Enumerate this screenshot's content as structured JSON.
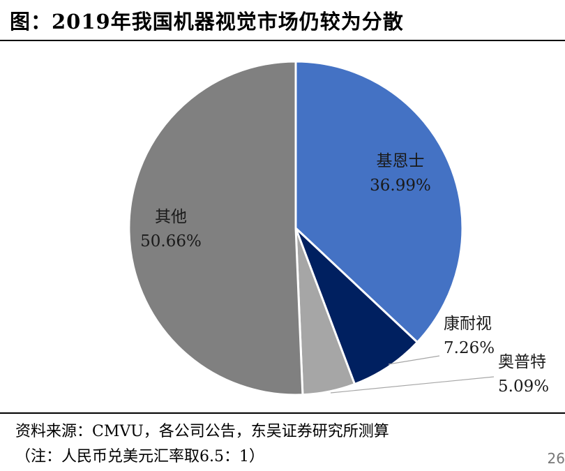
{
  "header": {
    "title": "图：2019年我国机器视觉市场仍较为分散"
  },
  "chart_data": {
    "type": "pie",
    "categories": [
      "基恩士",
      "康耐视",
      "奥普特",
      "其他"
    ],
    "values": [
      36.99,
      7.26,
      5.09,
      50.66
    ],
    "value_labels": [
      "36.99%",
      "7.26%",
      "5.09%",
      "50.66%"
    ],
    "colors": [
      "#4472C4",
      "#002060",
      "#A6A6A6",
      "#808080"
    ],
    "title": "",
    "legend": "none"
  },
  "footer": {
    "source": "资料来源：CMVU，各公司公告，东吴证券研究所测算",
    "note": "（注：人民币兑美元汇率取6.5：1）",
    "page_number": "26"
  }
}
